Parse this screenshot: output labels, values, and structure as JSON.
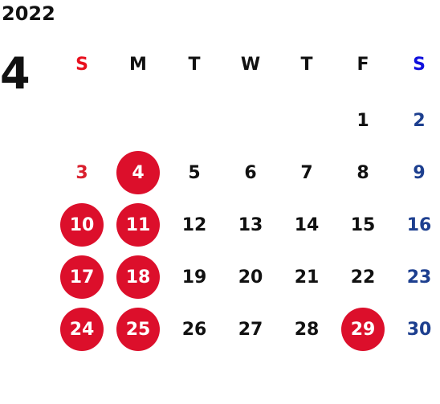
{
  "calendar": {
    "year": "2022",
    "month": "4",
    "weekdays": [
      {
        "label": "S",
        "kind": "sun"
      },
      {
        "label": "M",
        "kind": ""
      },
      {
        "label": "T",
        "kind": ""
      },
      {
        "label": "W",
        "kind": ""
      },
      {
        "label": "T",
        "kind": ""
      },
      {
        "label": "F",
        "kind": ""
      },
      {
        "label": "S",
        "kind": "sat"
      }
    ],
    "first_weekday_index": 5,
    "days_in_month": 30,
    "holidays": [
      4,
      10,
      11,
      17,
      18,
      24,
      25,
      29
    ],
    "colors": {
      "holiday_bg": "#dc0f2b",
      "sunday_text": "#d9202e",
      "saturday_text": "#1d3f8f",
      "sunday_header": "#e8101e",
      "saturday_header": "#1010dd"
    }
  }
}
